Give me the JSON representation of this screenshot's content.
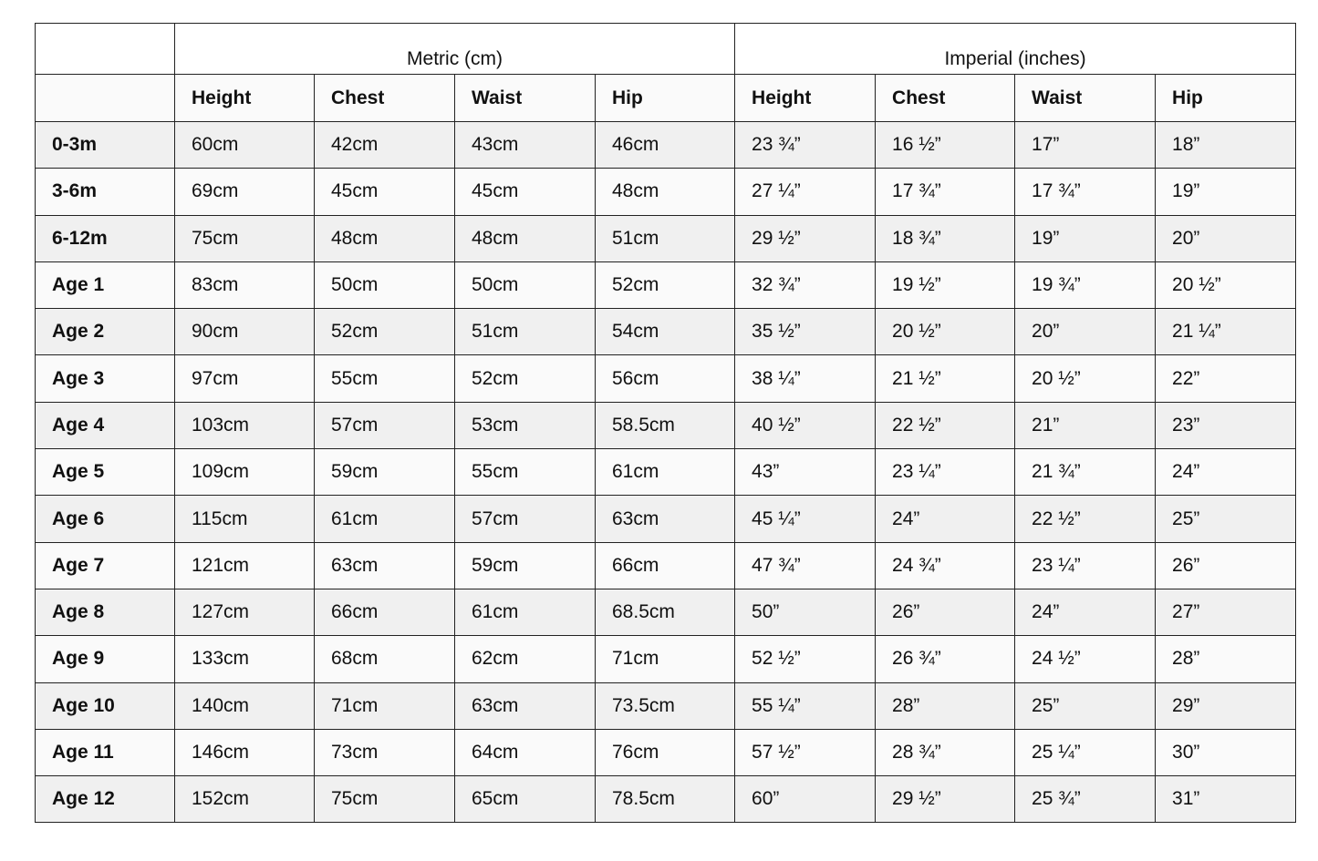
{
  "groups": {
    "metric": "Metric (cm)",
    "imperial": "Imperial (inches)"
  },
  "columns": [
    "Height",
    "Chest",
    "Waist",
    "Hip",
    "Height",
    "Chest",
    "Waist",
    "Hip"
  ],
  "rows": [
    {
      "label": "0-3m",
      "cells": [
        "60cm",
        "42cm",
        "43cm",
        "46cm",
        "23 ¾”",
        "16 ½”",
        "17”",
        "18”"
      ]
    },
    {
      "label": "3-6m",
      "cells": [
        "69cm",
        "45cm",
        "45cm",
        "48cm",
        "27 ¼”",
        "17 ¾”",
        "17 ¾”",
        "19”"
      ]
    },
    {
      "label": "6-12m",
      "cells": [
        "75cm",
        "48cm",
        "48cm",
        "51cm",
        "29 ½”",
        "18 ¾”",
        "19”",
        "20”"
      ]
    },
    {
      "label": "Age 1",
      "cells": [
        "83cm",
        "50cm",
        "50cm",
        "52cm",
        "32 ¾”",
        "19 ½”",
        "19 ¾”",
        "20 ½”"
      ]
    },
    {
      "label": "Age 2",
      "cells": [
        "90cm",
        "52cm",
        "51cm",
        "54cm",
        "35 ½”",
        "20 ½”",
        "20”",
        "21 ¼”"
      ]
    },
    {
      "label": "Age 3",
      "cells": [
        "97cm",
        "55cm",
        "52cm",
        "56cm",
        "38 ¼”",
        "21 ½”",
        "20 ½”",
        "22”"
      ]
    },
    {
      "label": "Age 4",
      "cells": [
        "103cm",
        "57cm",
        "53cm",
        "58.5cm",
        "40 ½”",
        "22 ½”",
        "21”",
        "23”"
      ]
    },
    {
      "label": "Age 5",
      "cells": [
        "109cm",
        "59cm",
        "55cm",
        "61cm",
        "43”",
        "23 ¼”",
        "21 ¾”",
        "24”"
      ]
    },
    {
      "label": "Age 6",
      "cells": [
        "115cm",
        "61cm",
        "57cm",
        "63cm",
        "45 ¼”",
        "24”",
        "22 ½”",
        "25”"
      ]
    },
    {
      "label": "Age 7",
      "cells": [
        "121cm",
        "63cm",
        "59cm",
        "66cm",
        "47 ¾”",
        "24 ¾”",
        "23 ¼”",
        "26”"
      ]
    },
    {
      "label": "Age 8",
      "cells": [
        "127cm",
        "66cm",
        "61cm",
        "68.5cm",
        "50”",
        "26”",
        "24”",
        "27”"
      ]
    },
    {
      "label": "Age 9",
      "cells": [
        "133cm",
        "68cm",
        "62cm",
        "71cm",
        "52 ½”",
        "26 ¾”",
        "24 ½”",
        "28”"
      ]
    },
    {
      "label": "Age 10",
      "cells": [
        "140cm",
        "71cm",
        "63cm",
        "73.5cm",
        "55 ¼”",
        "28”",
        "25”",
        "29”"
      ]
    },
    {
      "label": "Age 11",
      "cells": [
        "146cm",
        "73cm",
        "64cm",
        "76cm",
        "57 ½”",
        "28 ¾”",
        "25 ¼”",
        "30”"
      ]
    },
    {
      "label": "Age 12",
      "cells": [
        "152cm",
        "75cm",
        "65cm",
        "78.5cm",
        "60”",
        "29 ½”",
        "25 ¾”",
        "31”"
      ]
    }
  ]
}
